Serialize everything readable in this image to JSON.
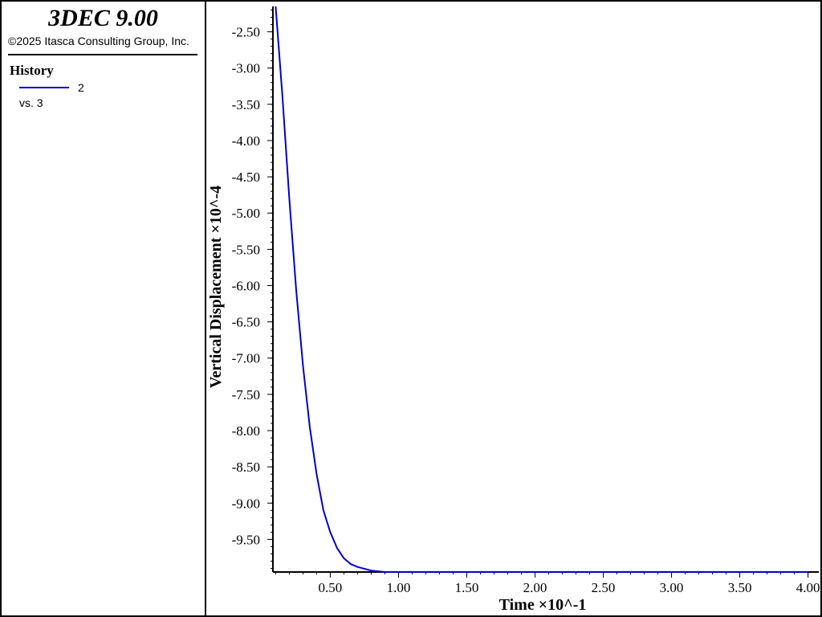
{
  "app": {
    "title": "3DEC 9.00",
    "copyright": "©2025 Itasca Consulting Group, Inc."
  },
  "legend": {
    "heading": "History",
    "series_id": "2",
    "vs_label": "vs. 3"
  },
  "colors": {
    "series": "#0000cc",
    "axis": "#000000",
    "background": "#ffffff"
  },
  "chart_data": {
    "type": "line",
    "xlabel": "Time ×10^-1",
    "ylabel": "Vertical Displacement ×10^-4",
    "xlim": [
      0.08,
      4.02
    ],
    "ylim": [
      -9.95,
      -2.15
    ],
    "xticks": [
      0.5,
      1.0,
      1.5,
      2.0,
      2.5,
      3.0,
      3.5,
      4.0
    ],
    "xtick_labels": [
      "0.50",
      "1.00",
      "1.50",
      "2.00",
      "2.50",
      "3.00",
      "3.50",
      "4.00"
    ],
    "yticks": [
      -2.5,
      -3.0,
      -3.5,
      -4.0,
      -4.5,
      -5.0,
      -5.5,
      -6.0,
      -6.5,
      -7.0,
      -7.5,
      -8.0,
      -8.5,
      -9.0,
      -9.5
    ],
    "ytick_labels": [
      "-2.50",
      "-3.00",
      "-3.50",
      "-4.00",
      "-4.50",
      "-5.00",
      "-5.50",
      "-6.00",
      "-6.50",
      "-7.00",
      "-7.50",
      "-8.00",
      "-8.50",
      "-9.00",
      "-9.50"
    ],
    "grid": false,
    "series": [
      {
        "name": "2",
        "x": [
          0.1,
          0.15,
          0.2,
          0.25,
          0.3,
          0.35,
          0.4,
          0.45,
          0.5,
          0.55,
          0.6,
          0.65,
          0.7,
          0.8,
          0.9,
          1.0,
          1.5,
          2.0,
          2.5,
          3.0,
          3.5,
          4.0
        ],
        "y": [
          -2.15,
          -3.4,
          -4.8,
          -6.05,
          -7.1,
          -7.95,
          -8.6,
          -9.1,
          -9.4,
          -9.62,
          -9.76,
          -9.84,
          -9.88,
          -9.93,
          -9.95,
          -9.95,
          -9.95,
          -9.95,
          -9.95,
          -9.95,
          -9.95,
          -9.95
        ]
      }
    ]
  }
}
